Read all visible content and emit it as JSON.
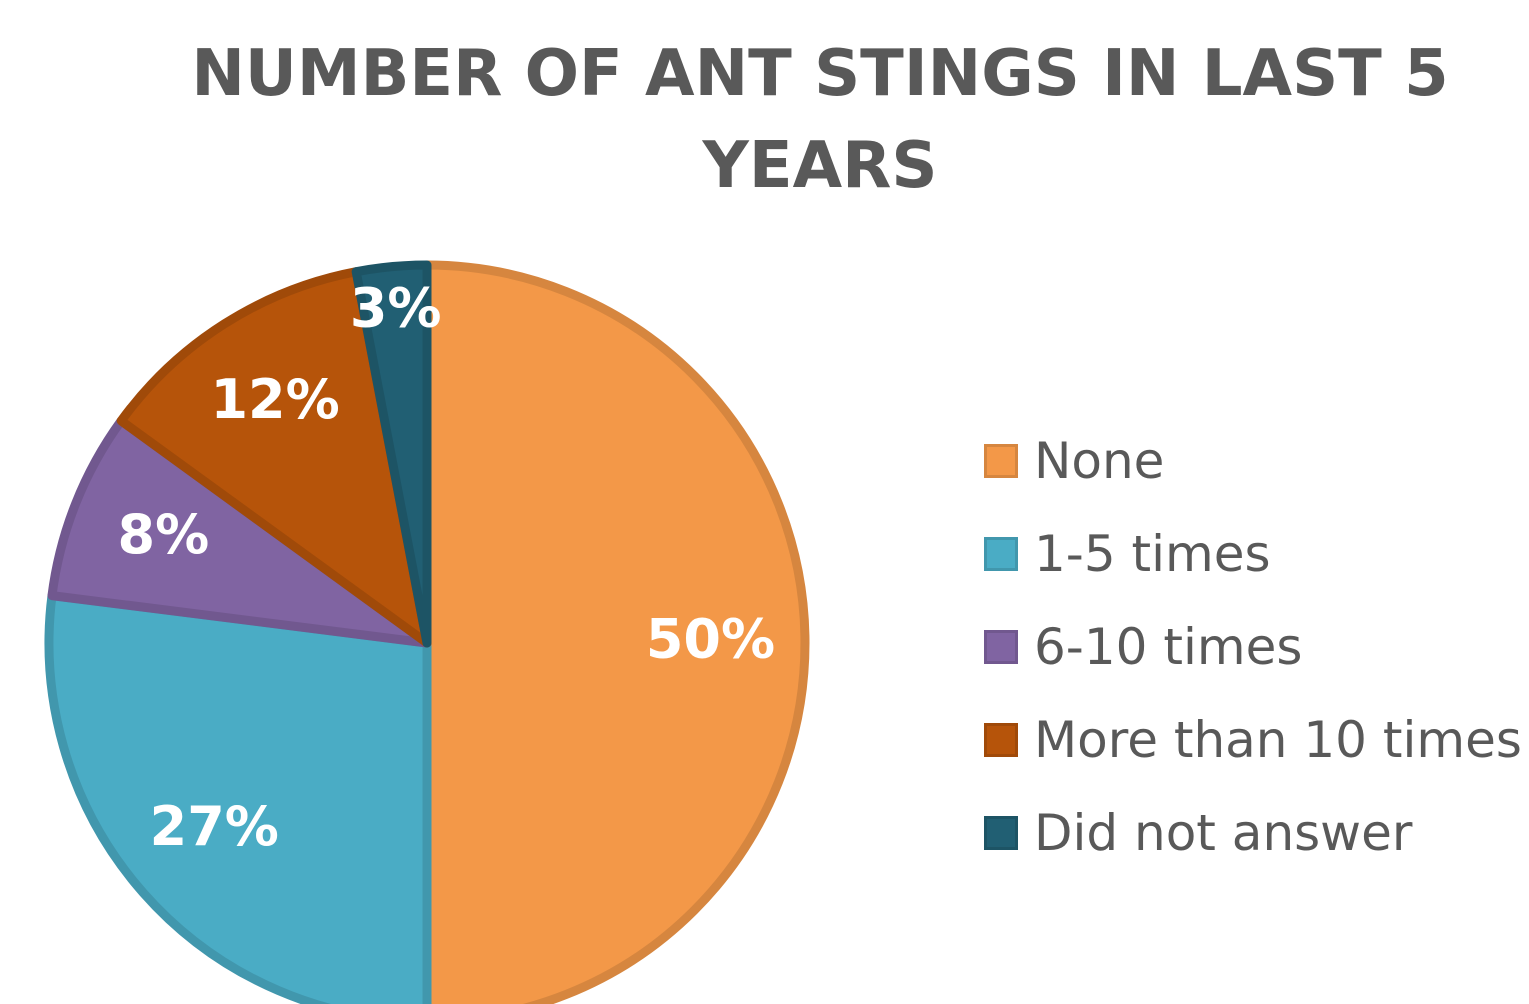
{
  "chart_data": {
    "type": "pie",
    "title": "NUMBER OF ANT STINGS IN LAST 5 YEARS",
    "categories": [
      "None",
      "1-5 times",
      "6-10 times",
      "More than 10 times",
      "Did not answer"
    ],
    "values": [
      50,
      27,
      8,
      12,
      3
    ],
    "data_labels": [
      "50%",
      "27%",
      "8%",
      "12%",
      "3%"
    ],
    "unit": "%",
    "colors": [
      "#F39848",
      "#4AACC5",
      "#8064A2",
      "#B6540A",
      "#215F73"
    ],
    "legend_position": "right",
    "start_angle": "12 o'clock",
    "direction": "clockwise"
  }
}
